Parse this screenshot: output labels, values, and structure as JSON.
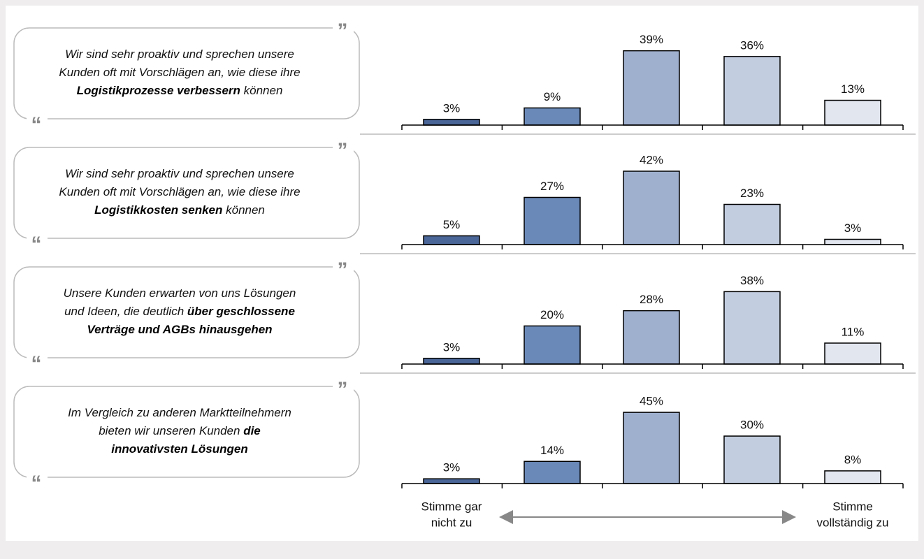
{
  "quote_marks": {
    "open": "“",
    "close": "”"
  },
  "scale_labels": {
    "left": [
      "Stimme gar",
      "nicht zu"
    ],
    "right": [
      "Stimme",
      "vollständig zu"
    ]
  },
  "chart_data": [
    {
      "type": "bar",
      "statement": [
        [
          {
            "text": "Wir sind sehr proaktiv und sprechen unsere",
            "bold": false
          }
        ],
        [
          {
            "text": "Kunden oft mit Vorschlägen an, wie diese ihre",
            "bold": false
          }
        ],
        [
          {
            "text": "Logistikprozesse verbessern",
            "bold": true
          },
          {
            "text": " können",
            "bold": false
          }
        ]
      ],
      "categories": [
        null,
        null,
        null,
        null,
        null
      ],
      "values": [
        3,
        9,
        39,
        36,
        13
      ],
      "value_labels": [
        "3%",
        "9%",
        "39%",
        "36%",
        "13%"
      ],
      "colors": [
        "#4a6597",
        "#6a89b8",
        "#9fb0cf",
        "#c3cde0",
        "#e1e6ef"
      ],
      "ylim": [
        0,
        44
      ]
    },
    {
      "type": "bar",
      "statement": [
        [
          {
            "text": "Wir sind sehr proaktiv und sprechen unsere",
            "bold": false
          }
        ],
        [
          {
            "text": "Kunden oft mit Vorschlägen an, wie diese ihre",
            "bold": false
          }
        ],
        [
          {
            "text": "Logistikkosten senken",
            "bold": true
          },
          {
            "text": " können",
            "bold": false
          }
        ]
      ],
      "categories": [
        null,
        null,
        null,
        null,
        null
      ],
      "values": [
        5,
        27,
        42,
        23,
        3
      ],
      "value_labels": [
        "5%",
        "27%",
        "42%",
        "23%",
        "3%"
      ],
      "colors": [
        "#4a6597",
        "#6a89b8",
        "#9fb0cf",
        "#c3cde0",
        "#e1e6ef"
      ],
      "ylim": [
        0,
        48
      ]
    },
    {
      "type": "bar",
      "statement": [
        [
          {
            "text": "Unsere Kunden erwarten von uns Lösungen",
            "bold": false
          }
        ],
        [
          {
            "text": "und Ideen, die deutlich ",
            "bold": false
          },
          {
            "text": "über geschlossene",
            "bold": true
          }
        ],
        [
          {
            "text": "Verträge und AGBs hinausgehen",
            "bold": true
          }
        ]
      ],
      "categories": [
        null,
        null,
        null,
        null,
        null
      ],
      "values": [
        3,
        20,
        28,
        38,
        11
      ],
      "value_labels": [
        "3%",
        "20%",
        "28%",
        "38%",
        "11%"
      ],
      "colors": [
        "#4a6597",
        "#6a89b8",
        "#9fb0cf",
        "#c3cde0",
        "#e1e6ef"
      ],
      "ylim": [
        0,
        44
      ]
    },
    {
      "type": "bar",
      "statement": [
        [
          {
            "text": "Im Vergleich zu anderen Marktteilnehmern",
            "bold": false
          }
        ],
        [
          {
            "text": "bieten wir unseren Kunden ",
            "bold": false
          },
          {
            "text": "die",
            "bold": true
          }
        ],
        [
          {
            "text": "innovativsten Lösungen",
            "bold": true
          }
        ]
      ],
      "categories": [
        null,
        null,
        null,
        null,
        null
      ],
      "values": [
        3,
        14,
        45,
        30,
        8
      ],
      "value_labels": [
        "3%",
        "14%",
        "45%",
        "30%",
        "8%"
      ],
      "colors": [
        "#4a6597",
        "#6a89b8",
        "#9fb0cf",
        "#c3cde0",
        "#e1e6ef"
      ],
      "ylim": [
        0,
        53
      ]
    }
  ]
}
